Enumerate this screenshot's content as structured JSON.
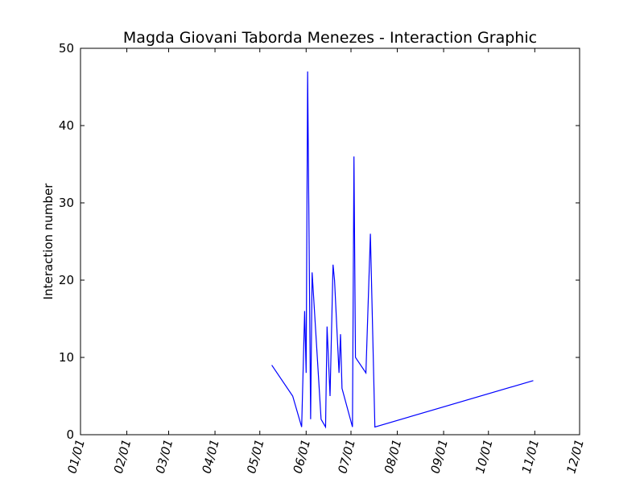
{
  "chart_data": {
    "type": "line",
    "title": "Magda Giovani Taborda Menezes - Interaction Graphic",
    "xlabel": "",
    "ylabel": "Interaction number",
    "xlim": [
      "01/01",
      "12/01"
    ],
    "ylim": [
      0,
      50
    ],
    "grid": false,
    "x_tick_labels": [
      "01/01",
      "02/01",
      "03/01",
      "04/01",
      "05/01",
      "06/01",
      "07/01",
      "08/01",
      "09/01",
      "10/01",
      "11/01",
      "12/01"
    ],
    "y_tick_labels": [
      "0",
      "10",
      "20",
      "30",
      "40",
      "50"
    ],
    "series": [
      {
        "color": "#0000ff",
        "x": [
          "05/09",
          "05/23",
          "05/29",
          "05/31",
          "06/01",
          "06/02",
          "06/04",
          "06/05",
          "06/11",
          "06/14",
          "06/15",
          "06/17",
          "06/19",
          "06/20",
          "06/23",
          "06/24",
          "06/25",
          "07/02",
          "07/03",
          "07/04",
          "07/11",
          "07/14",
          "07/17",
          "10/31"
        ],
        "values": [
          9,
          5,
          1,
          16,
          8,
          47,
          2,
          21,
          2,
          1,
          14,
          5,
          22,
          20,
          8,
          13,
          6,
          1,
          36,
          10,
          8,
          26,
          1,
          7
        ]
      }
    ]
  }
}
